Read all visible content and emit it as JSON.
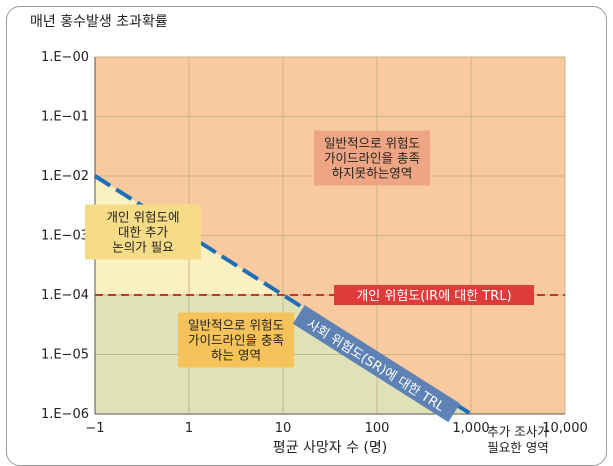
{
  "chart_data": {
    "type": "area",
    "title": "매년 홍수발생 초과확률",
    "xlabel": "평균 사망자 수 (명)",
    "ylabel": "",
    "x_ticks": [
      "−1",
      "1",
      "10",
      "100",
      "1,000",
      "10,000"
    ],
    "y_ticks": [
      "1.E−00",
      "1.E−01",
      "1.E−02",
      "1.E−03",
      "1.E−04",
      "1.E−05",
      "1.E−06"
    ],
    "xlim": [
      "−1",
      "10,000"
    ],
    "ylim": [
      "1.E−06",
      "1.E−00"
    ],
    "x_scale": "log",
    "y_scale": "log",
    "grid": true,
    "series": [
      {
        "name": "사회 위험도(SR)에 대한 TRL",
        "style": "dashed",
        "color": "#1f6fb8",
        "x": [
          "−1",
          1000
        ],
        "y": [
          0.01,
          1e-06
        ]
      },
      {
        "name": "개인 위험도(IR에 대한 TRL)",
        "style": "dashed",
        "color": "#c0392b",
        "x": [
          "−1",
          10000
        ],
        "y": [
          0.0001,
          0.0001
        ]
      }
    ],
    "regions": [
      {
        "label": [
          "일반적으로 위험도",
          "가이드라인을 총족",
          "하지못하는영역"
        ],
        "color": "#f9c9a0"
      },
      {
        "label": [
          "개인 위험도에",
          "대한 추가",
          "논의가 필요"
        ],
        "color": "#fbf0c2"
      },
      {
        "label": [
          "일반적으로 위험도",
          "가이드라인을 충족",
          "하는 영역"
        ],
        "color": "#dfe2b8"
      },
      {
        "label": [
          "추가 조사가",
          "필요한 영역"
        ],
        "color": "#9e9ea6"
      }
    ]
  }
}
